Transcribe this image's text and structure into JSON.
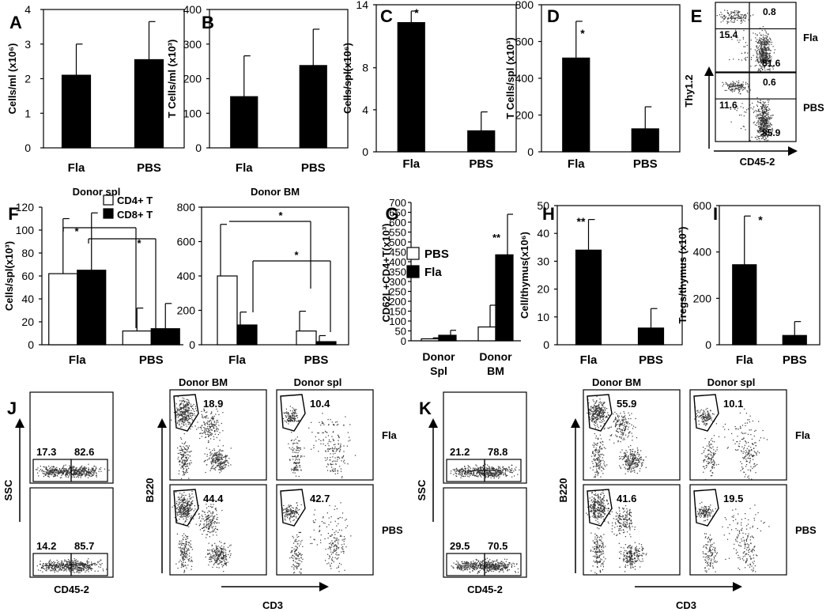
{
  "panels": {
    "A": {
      "letter": "A",
      "ylabel": "Cells/ml (x10⁶)",
      "ticks": [
        "0",
        "1",
        "2",
        "3",
        "4"
      ],
      "cats": [
        "Fla",
        "PBS"
      ]
    },
    "B": {
      "letter": "B",
      "ylabel": "T Cells/ml (x10³)",
      "ticks": [
        "0",
        "100",
        "200",
        "300",
        "400"
      ],
      "cats": [
        "Fla",
        "PBS"
      ]
    },
    "C": {
      "letter": "C",
      "ylabel": "Cells/spl(x10⁶)",
      "ticks": [
        "0",
        "4",
        "8",
        "14"
      ],
      "cats": [
        "Fla",
        "PBS"
      ],
      "sig": "*"
    },
    "D": {
      "letter": "D",
      "ylabel": "T Cells/spl (x10³)",
      "ticks": [
        "0",
        "200",
        "400",
        "600",
        "800"
      ],
      "cats": [
        "Fla",
        "PBS"
      ],
      "sig": "*"
    },
    "E": {
      "letter": "E",
      "yaxis": "Thy1.2",
      "xaxis": "CD45-2",
      "rows": [
        {
          "label": "Fla",
          "q_ul": "15.4",
          "q_ur": "0.8",
          "q_lr": "81.6"
        },
        {
          "label": "PBS",
          "q_ul": "11.6",
          "q_ur": "0.6",
          "q_lr": "85.9"
        }
      ]
    },
    "F": {
      "letter": "F",
      "title": "Donor spl",
      "ylabel": "Cells/spl(x10³)",
      "ticks": [
        "0",
        "20",
        "40",
        "60",
        "80",
        "100",
        "120"
      ],
      "cats": [
        "Fla",
        "PBS"
      ],
      "legend": [
        "CD4+ T",
        "CD8+ T"
      ],
      "sig": "*"
    },
    "F2": {
      "title": "Donor BM",
      "ticks": [
        "0",
        "200",
        "400",
        "600",
        "800"
      ],
      "cats": [
        "Fla",
        "PBS"
      ],
      "sig": "*"
    },
    "G": {
      "letter": "G",
      "ylabel": "CD62L+CD4+T(x10³)",
      "ticks": [
        "0",
        "50",
        "100",
        "150",
        "200",
        "250",
        "300",
        "350",
        "400",
        "450",
        "500",
        "550",
        "600",
        "650",
        "700"
      ],
      "cats": [
        "Donor\nSpl",
        "Donor\nBM"
      ],
      "legend": [
        "PBS",
        "Fla"
      ],
      "sig": "**"
    },
    "H": {
      "letter": "H",
      "ylabel": "Cell/thymus(x10⁶)",
      "ticks": [
        "0",
        "10",
        "20",
        "30",
        "40",
        "50"
      ],
      "cats": [
        "Fla",
        "PBS"
      ],
      "sig": "**"
    },
    "I": {
      "letter": "I",
      "ylabel": "Tregs/thymus (x10³)",
      "ticks": [
        "0",
        "200",
        "400",
        "600"
      ],
      "cats": [
        "Fla",
        "PBS"
      ],
      "sig": "*"
    },
    "J": {
      "letter": "J",
      "ssc": "SSC",
      "cd45": "CD45-2",
      "b220": "B220",
      "cd3": "CD3",
      "col1": "Donor BM",
      "col2": "Donor spl",
      "gates": [
        {
          "left": "17.3",
          "right": "82.6"
        },
        {
          "left": "14.2",
          "right": "85.7"
        }
      ],
      "bm": [
        "18.9",
        "44.4"
      ],
      "spl": [
        "10.4",
        "42.7"
      ],
      "rows": [
        "Fla",
        "PBS"
      ]
    },
    "K": {
      "letter": "K",
      "ssc": "SSC",
      "cd45": "CD45-2",
      "b220": "B220",
      "cd3": "CD3",
      "col1": "Donor BM",
      "col2": "Donor spl",
      "gates": [
        {
          "left": "21.2",
          "right": "78.8"
        },
        {
          "left": "29.5",
          "right": "70.5"
        }
      ],
      "bm": [
        "55.9",
        "41.6"
      ],
      "spl": [
        "10.1",
        "19.5"
      ],
      "rows": [
        "Fla",
        "PBS"
      ]
    }
  },
  "chart_data": [
    {
      "panel": "A",
      "type": "bar",
      "categories": [
        "Fla",
        "PBS"
      ],
      "values": [
        2.1,
        2.55
      ],
      "errors": [
        0.9,
        1.1
      ],
      "ylim": [
        0,
        4
      ],
      "ylabel": "Cells/ml (x10⁶)"
    },
    {
      "panel": "B",
      "type": "bar",
      "categories": [
        "Fla",
        "PBS"
      ],
      "values": [
        148,
        238
      ],
      "errors": [
        118,
        105
      ],
      "ylim": [
        0,
        400
      ],
      "ylabel": "T Cells/ml (x10³)"
    },
    {
      "panel": "C",
      "type": "bar",
      "categories": [
        "Fla",
        "PBS"
      ],
      "values": [
        12.3,
        2.0
      ],
      "errors": [
        1.1,
        1.8
      ],
      "ylim": [
        0,
        14
      ],
      "ylabel": "Cells/spl(x10⁶)"
    },
    {
      "panel": "D",
      "type": "bar",
      "categories": [
        "Fla",
        "PBS"
      ],
      "values": [
        510,
        125
      ],
      "errors": [
        200,
        120
      ],
      "ylim": [
        0,
        800
      ],
      "ylabel": "T Cells/spl (x10³)"
    },
    {
      "panel": "F",
      "type": "bar",
      "title": "Donor spl",
      "categories": [
        "Fla",
        "PBS"
      ],
      "series": [
        {
          "name": "CD4+ T",
          "values": [
            62,
            12
          ],
          "errors": [
            48,
            20
          ]
        },
        {
          "name": "CD8+ T",
          "values": [
            65,
            14
          ],
          "errors": [
            50,
            22
          ]
        }
      ],
      "ylim": [
        0,
        120
      ],
      "ylabel": "Cells/spl(x10³)"
    },
    {
      "panel": "F2",
      "type": "bar",
      "title": "Donor BM",
      "categories": [
        "Fla",
        "PBS"
      ],
      "series": [
        {
          "name": "CD4+ T",
          "values": [
            400,
            80
          ],
          "errors": [
            300,
            115
          ]
        },
        {
          "name": "CD8+ T",
          "values": [
            115,
            18
          ],
          "errors": [
            75,
            35
          ]
        }
      ],
      "ylim": [
        0,
        800
      ]
    },
    {
      "panel": "G",
      "type": "bar",
      "categories": [
        "Donor Spl",
        "Donor BM"
      ],
      "series": [
        {
          "name": "PBS",
          "values": [
            10,
            70
          ],
          "errors": [
            5,
            110
          ]
        },
        {
          "name": "Fla",
          "values": [
            28,
            435
          ],
          "errors": [
            25,
            205
          ]
        }
      ],
      "ylim": [
        0,
        700
      ],
      "ylabel": "CD62L+CD4+T(x10³)"
    },
    {
      "panel": "H",
      "type": "bar",
      "categories": [
        "Fla",
        "PBS"
      ],
      "values": [
        34,
        6
      ],
      "errors": [
        11,
        7
      ],
      "ylim": [
        0,
        50
      ],
      "ylabel": "Cell/thymus(x10⁶)"
    },
    {
      "panel": "I",
      "type": "bar",
      "categories": [
        "Fla",
        "PBS"
      ],
      "values": [
        345,
        40
      ],
      "errors": [
        210,
        60
      ],
      "ylim": [
        0,
        600
      ],
      "ylabel": "Tregs/thymus (x10³)"
    }
  ]
}
